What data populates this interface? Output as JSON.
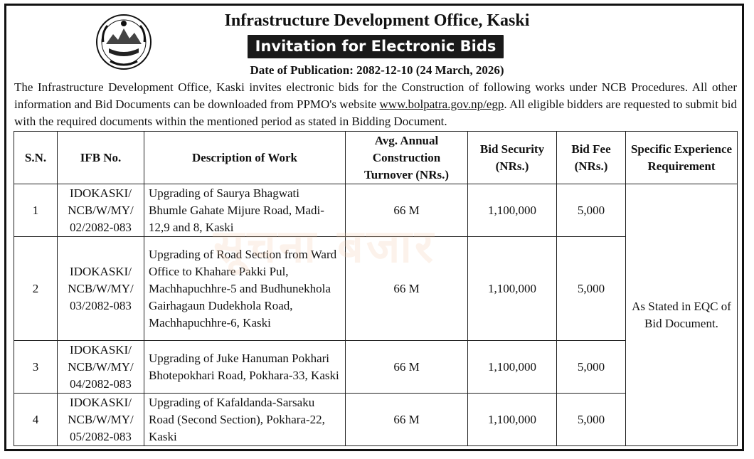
{
  "notice": {
    "office_title": "Infrastructure Development Office, Kaski",
    "heading": "Invitation for Electronic Bids",
    "publication_date": "Date of Publication: 2082-12-10 (24 March, 2026)",
    "intro_part1": "The Infrastructure Development Office, Kaski invites electronic bids for the Construction of following works under NCB Procedures. All other information and Bid Documents can be downloaded from PPMO's website ",
    "intro_link": "www.bolpatra.gov.np/egp",
    "intro_part2": ". All eligible bidders are requested to submit bid with the required documents within the mentioned period as stated in Bidding Document."
  },
  "table": {
    "headers": {
      "sn": "S.N.",
      "ifb": "IFB No.",
      "description": "Description of Work",
      "turnover": "Avg. Annual Construction Turnover (NRs.)",
      "security": "Bid Security (NRs.)",
      "fee": "Bid Fee (NRs.)",
      "experience": "Specific Experience Requirement"
    },
    "rows": [
      {
        "sn": "1",
        "ifb": "IDOKASKI/ NCB/W/MY/ 02/2082-083",
        "description": "Upgrading of Saurya Bhagwati Bhumle Gahate Mijure Road, Madi-12,9 and 8, Kaski",
        "turnover": "66 M",
        "security": "1,100,000",
        "fee": "5,000"
      },
      {
        "sn": "2",
        "ifb": "IDOKASKI/ NCB/W/MY/ 03/2082-083",
        "description": "Upgrading of Road Section from Ward Office to Khahare Pakki Pul, Machhapuchhre-5 and Budhunekhola Gairhagaun Dudekhola Road, Machhapuchhre-6, Kaski",
        "turnover": "66 M",
        "security": "1,100,000",
        "fee": "5,000"
      },
      {
        "sn": "3",
        "ifb": "IDOKASKI/ NCB/W/MY/ 04/2082-083",
        "description": "Upgrading of Juke Hanuman Pokhari Bhotepokhari Road, Pokhara-33, Kaski",
        "turnover": "66 M",
        "security": "1,100,000",
        "fee": "5,000"
      },
      {
        "sn": "4",
        "ifb": "IDOKASKI/ NCB/W/MY/ 05/2082-083",
        "description": "Upgrading of Kafaldanda-Sarsaku Road (Second Section), Pokhara-22, Kaski",
        "turnover": "66 M",
        "security": "1,100,000",
        "fee": "5,000"
      }
    ],
    "experience_requirement": "As Stated in EQC of Bid Document."
  },
  "watermark": "सूचना बजार",
  "colors": {
    "heading_bar": "#1a1a1a",
    "watermark": "#f3c9a8"
  }
}
